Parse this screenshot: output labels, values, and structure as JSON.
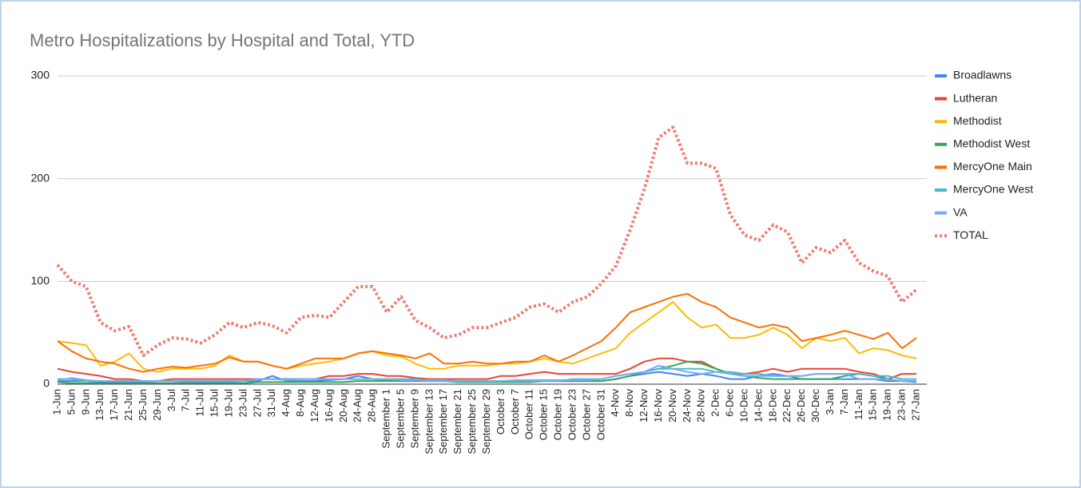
{
  "chart_data": {
    "type": "line",
    "title": "Metro Hospitalizations by Hospital and Total, YTD",
    "categories": [
      "1-Jun",
      "5-Jun",
      "9-Jun",
      "13-Jun",
      "17-Jun",
      "21-Jun",
      "25-Jun",
      "29-Jun",
      "3-Jul",
      "7-Jul",
      "11-Jul",
      "15-Jul",
      "19-Jul",
      "23-Jul",
      "27-Jul",
      "31-Jul",
      "4-Aug",
      "8-Aug",
      "12-Aug",
      "16-Aug",
      "20-Aug",
      "24-Aug",
      "28-Aug",
      "September 1",
      "September 5",
      "September 9",
      "September 13",
      "September 17",
      "September 21",
      "September 25",
      "September 29",
      "October 3",
      "October 7",
      "October 11",
      "October 15",
      "October 19",
      "October 23",
      "October 27",
      "October 31",
      "4-Nov",
      "8-Nov",
      "12-Nov",
      "16-Nov",
      "20-Nov",
      "24-Nov",
      "28-Nov",
      "2-Dec",
      "6-Dec",
      "10-Dec",
      "14-Dec",
      "18-Dec",
      "22-Dec",
      "26-Dec",
      "30-Dec",
      "3-Jan",
      "7-Jan",
      "11-Jan",
      "15-Jan",
      "19-Jan",
      "23-Jan",
      "27-Jan"
    ],
    "ylim": [
      0,
      300
    ],
    "yticks": [
      0,
      100,
      200,
      300
    ],
    "grid": true,
    "legend": "right",
    "series": [
      {
        "name": "Broadlawns",
        "color": "#4285f4",
        "values": [
          3,
          3,
          3,
          2,
          2,
          2,
          2,
          3,
          3,
          2,
          2,
          2,
          2,
          3,
          3,
          8,
          3,
          3,
          3,
          4,
          5,
          8,
          5,
          4,
          3,
          3,
          3,
          3,
          3,
          3,
          3,
          3,
          3,
          3,
          3,
          3,
          3,
          3,
          3,
          5,
          8,
          10,
          12,
          10,
          8,
          10,
          8,
          5,
          5,
          8,
          10,
          8,
          5,
          5,
          5,
          5,
          5,
          5,
          3,
          3,
          2
        ]
      },
      {
        "name": "Lutheran",
        "color": "#ea4335",
        "values": [
          15,
          12,
          10,
          8,
          5,
          5,
          3,
          3,
          5,
          5,
          5,
          5,
          5,
          5,
          5,
          5,
          5,
          5,
          5,
          8,
          8,
          10,
          10,
          8,
          8,
          6,
          5,
          5,
          5,
          5,
          5,
          8,
          8,
          10,
          12,
          10,
          10,
          10,
          10,
          10,
          15,
          22,
          25,
          25,
          22,
          22,
          15,
          10,
          10,
          12,
          15,
          12,
          15,
          15,
          15,
          15,
          12,
          10,
          5,
          10,
          10
        ]
      },
      {
        "name": "Methodist",
        "color": "#fbbc04",
        "values": [
          42,
          40,
          38,
          18,
          22,
          30,
          15,
          12,
          15,
          15,
          15,
          18,
          28,
          22,
          22,
          18,
          15,
          18,
          20,
          22,
          25,
          30,
          32,
          28,
          27,
          20,
          15,
          15,
          18,
          18,
          18,
          20,
          20,
          22,
          25,
          22,
          20,
          25,
          30,
          35,
          50,
          60,
          70,
          80,
          65,
          55,
          58,
          45,
          45,
          48,
          55,
          48,
          35,
          45,
          42,
          45,
          30,
          35,
          33,
          28,
          25
        ]
      },
      {
        "name": "Methodist West",
        "color": "#34a853",
        "values": [
          2,
          1,
          1,
          1,
          1,
          1,
          1,
          1,
          1,
          1,
          1,
          1,
          1,
          1,
          2,
          2,
          2,
          2,
          2,
          2,
          2,
          3,
          3,
          3,
          3,
          5,
          3,
          3,
          2,
          2,
          2,
          2,
          2,
          2,
          3,
          3,
          3,
          3,
          3,
          5,
          8,
          12,
          15,
          18,
          22,
          20,
          15,
          10,
          8,
          6,
          5,
          5,
          5,
          5,
          5,
          8,
          10,
          8,
          5,
          3,
          3
        ]
      },
      {
        "name": "MercyOne Main",
        "color": "#ff6d01",
        "values": [
          42,
          32,
          25,
          22,
          20,
          15,
          12,
          15,
          17,
          16,
          18,
          20,
          26,
          22,
          22,
          18,
          15,
          20,
          25,
          25,
          25,
          30,
          32,
          30,
          28,
          25,
          30,
          20,
          20,
          22,
          20,
          20,
          22,
          22,
          28,
          22,
          28,
          35,
          42,
          55,
          70,
          75,
          80,
          85,
          88,
          80,
          75,
          65,
          60,
          55,
          58,
          55,
          42,
          45,
          48,
          52,
          48,
          44,
          50,
          35,
          45
        ]
      },
      {
        "name": "MercyOne West",
        "color": "#46bdc6",
        "values": [
          5,
          5,
          3,
          3,
          3,
          3,
          3,
          3,
          3,
          3,
          3,
          3,
          3,
          3,
          5,
          5,
          5,
          5,
          5,
          5,
          5,
          5,
          5,
          5,
          5,
          5,
          3,
          3,
          3,
          3,
          3,
          3,
          3,
          3,
          3,
          3,
          5,
          5,
          5,
          8,
          10,
          12,
          15,
          15,
          15,
          15,
          12,
          12,
          10,
          10,
          8,
          8,
          8,
          10,
          10,
          10,
          10,
          8,
          8,
          5,
          5
        ]
      },
      {
        "name": "VA",
        "color": "#7baaf7",
        "values": [
          4,
          6,
          4,
          3,
          3,
          3,
          3,
          3,
          3,
          3,
          3,
          3,
          3,
          3,
          5,
          5,
          4,
          5,
          5,
          5,
          5,
          5,
          5,
          5,
          4,
          4,
          4,
          4,
          3,
          3,
          3,
          3,
          4,
          4,
          4,
          4,
          4,
          4,
          5,
          8,
          10,
          12,
          18,
          15,
          12,
          10,
          12,
          10,
          8,
          8,
          8,
          8,
          8,
          10,
          10,
          10,
          5,
          5,
          5,
          3,
          3
        ]
      },
      {
        "name": "TOTAL",
        "color": "#f07b72",
        "dashed": true,
        "values": [
          116,
          100,
          95,
          60,
          52,
          56,
          28,
          38,
          45,
          44,
          40,
          48,
          60,
          55,
          60,
          57,
          50,
          65,
          67,
          65,
          80,
          95,
          95,
          70,
          85,
          62,
          55,
          45,
          48,
          55,
          55,
          60,
          65,
          75,
          78,
          70,
          80,
          85,
          98,
          115,
          150,
          190,
          240,
          250,
          215,
          215,
          210,
          165,
          145,
          140,
          155,
          148,
          118,
          133,
          128,
          140,
          118,
          110,
          105,
          80,
          92
        ]
      }
    ]
  }
}
